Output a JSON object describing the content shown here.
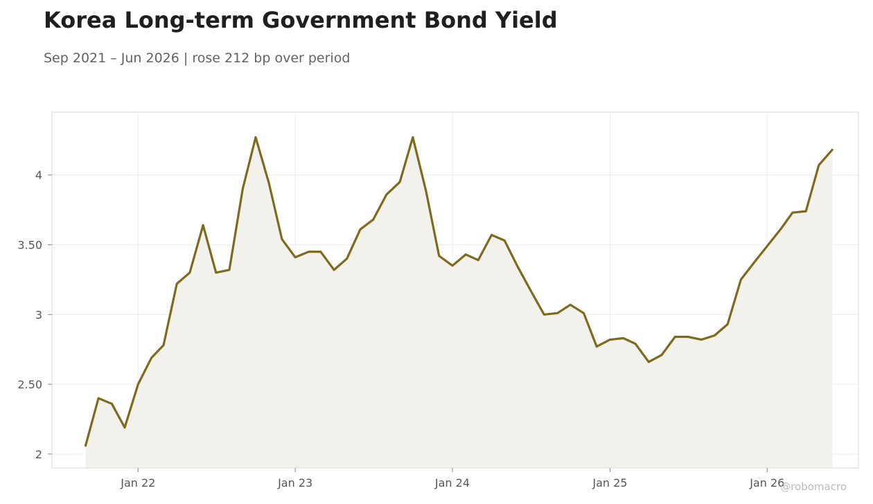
{
  "header": {
    "title": "Korea Long-term Government Bond Yield",
    "subtitle": "Sep 2021 – Jun 2026 | rose 212 bp over period"
  },
  "watermark": "@robomacro",
  "colors": {
    "line": "#7d6a1e",
    "fill": "#f3f1ec",
    "grid": "#ececec",
    "frame": "#d9d9d9",
    "tick_text": "#555555"
  },
  "chart_data": {
    "type": "area",
    "title": "Korea Long-term Government Bond Yield",
    "subtitle": "Sep 2021 – Jun 2026 | rose 212 bp over period",
    "xlabel": "",
    "ylabel": "",
    "grid": true,
    "legend": "none",
    "x_range": [
      "2021-06-15",
      "2026-08-01"
    ],
    "ylim": [
      1.9,
      4.45
    ],
    "y_ticks": [
      {
        "value": 2,
        "label": "2"
      },
      {
        "value": 2.5,
        "label": "2.50"
      },
      {
        "value": 3,
        "label": "3"
      },
      {
        "value": 3.5,
        "label": "3.50"
      },
      {
        "value": 4,
        "label": "4"
      }
    ],
    "x_ticks": [
      {
        "date": "2022-01-01",
        "label": "Jan 22"
      },
      {
        "date": "2023-01-01",
        "label": "Jan 23"
      },
      {
        "date": "2024-01-01",
        "label": "Jan 24"
      },
      {
        "date": "2025-01-01",
        "label": "Jan 25"
      },
      {
        "date": "2026-01-01",
        "label": "Jan 26"
      }
    ],
    "series": [
      {
        "x": [
          "2021-09-01",
          "2021-10-01",
          "2021-11-01",
          "2021-12-01",
          "2022-01-01",
          "2022-02-01",
          "2022-03-01",
          "2022-04-01",
          "2022-05-01",
          "2022-06-01",
          "2022-07-01",
          "2022-08-01",
          "2022-09-01",
          "2022-10-01",
          "2022-11-01",
          "2022-12-01",
          "2023-01-01",
          "2023-02-01",
          "2023-03-01",
          "2023-04-01",
          "2023-05-01",
          "2023-06-01",
          "2023-07-01",
          "2023-08-01",
          "2023-09-01",
          "2023-10-01",
          "2023-11-01",
          "2023-12-01",
          "2024-01-01",
          "2024-02-01",
          "2024-03-01",
          "2024-04-01",
          "2024-05-01",
          "2024-06-01",
          "2024-07-01",
          "2024-08-01",
          "2024-09-01",
          "2024-10-01",
          "2024-11-01",
          "2024-12-01",
          "2025-01-01",
          "2025-02-01",
          "2025-03-01",
          "2025-04-01",
          "2025-05-01",
          "2025-06-01",
          "2025-07-01",
          "2025-08-01",
          "2025-09-01",
          "2025-10-01",
          "2025-11-01",
          "2025-12-01",
          "2026-01-01",
          "2026-02-01",
          "2026-03-01",
          "2026-04-01",
          "2026-05-01",
          "2026-06-01"
        ],
        "values": [
          2.06,
          2.4,
          2.36,
          2.19,
          2.5,
          2.69,
          2.78,
          3.22,
          3.3,
          3.64,
          3.3,
          3.32,
          3.9,
          4.27,
          3.94,
          3.54,
          3.41,
          3.45,
          3.45,
          3.32,
          3.4,
          3.61,
          3.68,
          3.86,
          3.95,
          4.27,
          3.88,
          3.42,
          3.35,
          3.43,
          3.39,
          3.57,
          3.53,
          3.34,
          3.17,
          3.0,
          3.01,
          3.07,
          3.01,
          2.77,
          2.82,
          2.83,
          2.79,
          2.66,
          2.71,
          2.84,
          2.84,
          2.82,
          2.85,
          2.93,
          3.25,
          3.37,
          3.49,
          3.61,
          3.73,
          3.74,
          4.07,
          4.18
        ]
      }
    ]
  }
}
